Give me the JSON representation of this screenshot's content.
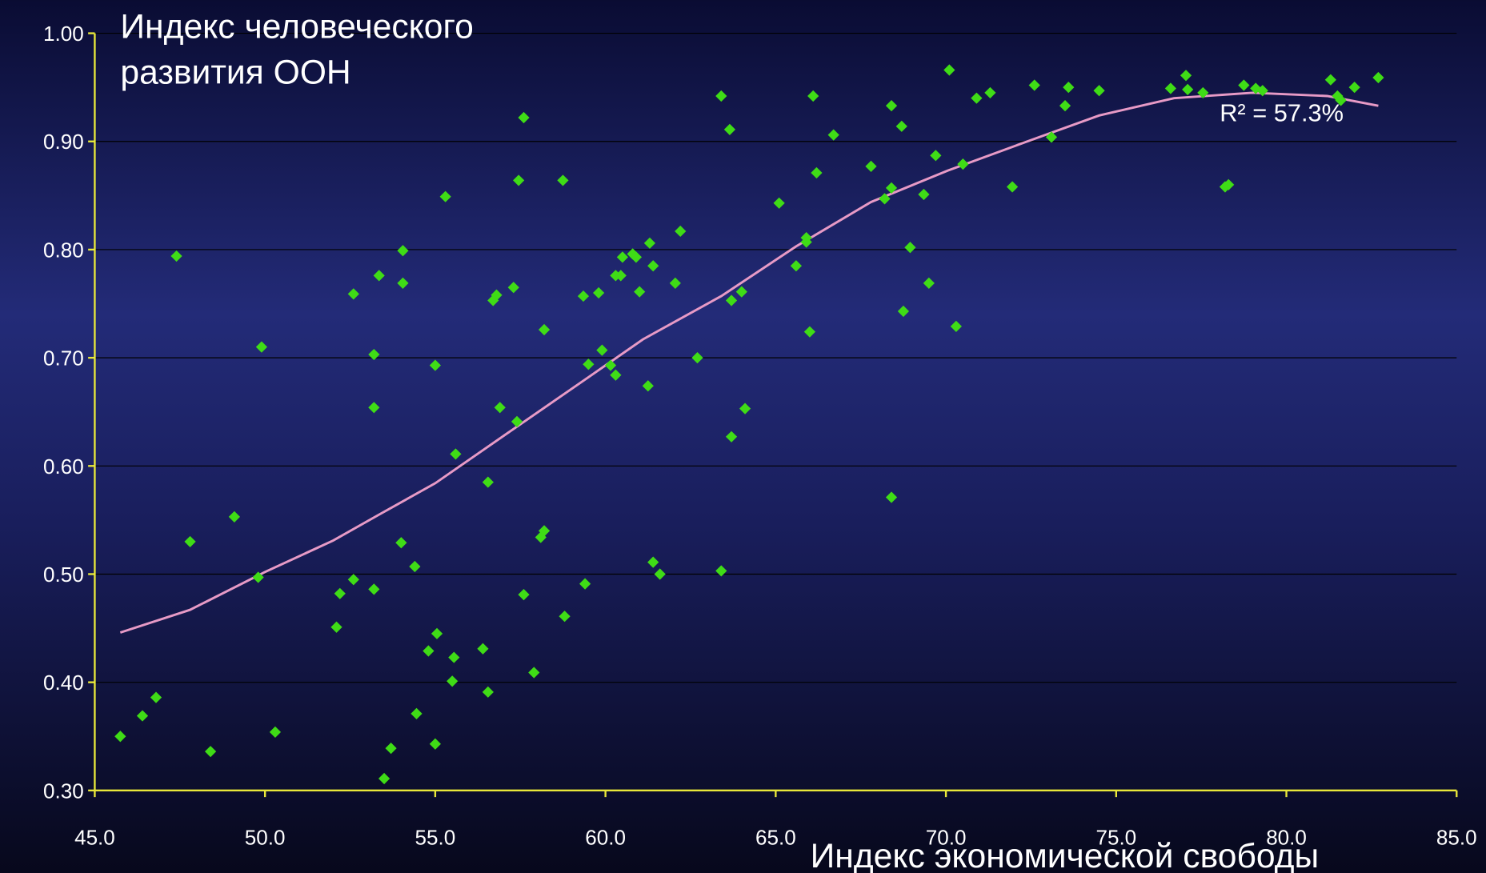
{
  "chart_data": {
    "type": "scatter",
    "y_label": [
      "Индекс человеческого",
      "развития ООН"
    ],
    "x_label": "Индекс экономической свободы",
    "annotation": "R² = 57.3%",
    "color": "#3fdc16",
    "grid": true,
    "xlim": [
      45,
      85
    ],
    "ylim": [
      0.3,
      1.0
    ],
    "xticks": [
      {
        "value": 45,
        "label": "45.0"
      },
      {
        "value": 50,
        "label": "50.0"
      },
      {
        "value": 55,
        "label": "55.0"
      },
      {
        "value": 60,
        "label": "60.0"
      },
      {
        "value": 65,
        "label": "65.0"
      },
      {
        "value": 70,
        "label": "70.0"
      },
      {
        "value": 75,
        "label": "75.0"
      },
      {
        "value": 80,
        "label": "80.0"
      },
      {
        "value": 85,
        "label": "85.0"
      }
    ],
    "yticks": [
      {
        "value": 0.3,
        "label": "0.30"
      },
      {
        "value": 0.4,
        "label": "0.40"
      },
      {
        "value": 0.5,
        "label": "0.50"
      },
      {
        "value": 0.6,
        "label": "0.60"
      },
      {
        "value": 0.7,
        "label": "0.70"
      },
      {
        "value": 0.8,
        "label": "0.80"
      },
      {
        "value": 0.9,
        "label": "0.90"
      },
      {
        "value": 1.0,
        "label": "1.00"
      }
    ],
    "x": [
      45.75,
      46.4,
      46.8,
      47.4,
      47.8,
      48.4,
      49.1,
      49.8,
      49.9,
      50.3,
      52.1,
      52.2,
      52.6,
      52.6,
      53.2,
      53.2,
      53.2,
      53.35,
      53.5,
      53.7,
      54.0,
      54.05,
      54.05,
      54.4,
      54.45,
      54.8,
      55.0,
      55.0,
      55.05,
      55.3,
      55.5,
      55.55,
      55.6,
      56.4,
      56.55,
      56.55,
      56.7,
      56.8,
      56.9,
      57.3,
      57.4,
      57.45,
      57.6,
      57.6,
      57.9,
      58.1,
      58.2,
      58.2,
      58.75,
      58.8,
      59.35,
      59.4,
      59.5,
      59.8,
      59.9,
      60.15,
      60.3,
      60.3,
      60.45,
      60.5,
      60.8,
      60.9,
      61.0,
      61.25,
      61.3,
      61.4,
      61.4,
      61.6,
      62.05,
      62.2,
      62.7,
      63.4,
      63.4,
      63.65,
      63.7,
      63.7,
      64.0,
      64.1,
      65.1,
      65.6,
      65.9,
      65.9,
      66.0,
      66.1,
      66.2,
      66.7,
      67.8,
      68.2,
      68.4,
      68.4,
      68.4,
      68.7,
      68.75,
      68.95,
      69.35,
      69.5,
      69.7,
      70.1,
      70.3,
      70.5,
      70.9,
      71.3,
      71.95,
      72.6,
      73.1,
      73.5,
      73.6,
      74.5,
      76.6,
      77.05,
      77.1,
      77.55,
      78.2,
      78.3,
      78.75,
      79.1,
      79.3,
      81.3,
      81.5,
      81.6,
      82.0,
      82.7
    ],
    "values": [
      0.35,
      0.369,
      0.386,
      0.794,
      0.53,
      0.336,
      0.553,
      0.497,
      0.71,
      0.354,
      0.451,
      0.482,
      0.759,
      0.495,
      0.703,
      0.654,
      0.486,
      0.776,
      0.311,
      0.339,
      0.529,
      0.799,
      0.769,
      0.507,
      0.371,
      0.429,
      0.693,
      0.343,
      0.445,
      0.849,
      0.401,
      0.423,
      0.611,
      0.431,
      0.585,
      0.391,
      0.753,
      0.758,
      0.654,
      0.765,
      0.641,
      0.864,
      0.481,
      0.922,
      0.409,
      0.534,
      0.54,
      0.726,
      0.864,
      0.461,
      0.757,
      0.491,
      0.694,
      0.76,
      0.707,
      0.693,
      0.776,
      0.684,
      0.776,
      0.793,
      0.796,
      0.793,
      0.761,
      0.674,
      0.806,
      0.785,
      0.511,
      0.5,
      0.769,
      0.817,
      0.7,
      0.942,
      0.503,
      0.911,
      0.753,
      0.627,
      0.761,
      0.653,
      0.843,
      0.785,
      0.811,
      0.807,
      0.724,
      0.942,
      0.871,
      0.906,
      0.877,
      0.847,
      0.933,
      0.857,
      0.571,
      0.914,
      0.743,
      0.802,
      0.851,
      0.769,
      0.887,
      0.966,
      0.729,
      0.879,
      0.94,
      0.945,
      0.858,
      0.952,
      0.904,
      0.933,
      0.95,
      0.947,
      0.949,
      0.961,
      0.948,
      0.945,
      0.858,
      0.86,
      0.952,
      0.949,
      0.947,
      0.957,
      0.942,
      0.938,
      0.95,
      0.959
    ],
    "trendline": {
      "color": "#e79ac6",
      "x": [
        45.75,
        47.8,
        50.0,
        52.0,
        53.35,
        55.0,
        57.2,
        59.5,
        61.1,
        63.4,
        65.6,
        67.8,
        70.05,
        72.3,
        74.5,
        76.7,
        79.0,
        81.2,
        82.7
      ],
      "values": [
        0.446,
        0.467,
        0.502,
        0.531,
        0.555,
        0.584,
        0.632,
        0.682,
        0.717,
        0.757,
        0.803,
        0.844,
        0.873,
        0.899,
        0.924,
        0.94,
        0.945,
        0.942,
        0.933
      ]
    }
  }
}
